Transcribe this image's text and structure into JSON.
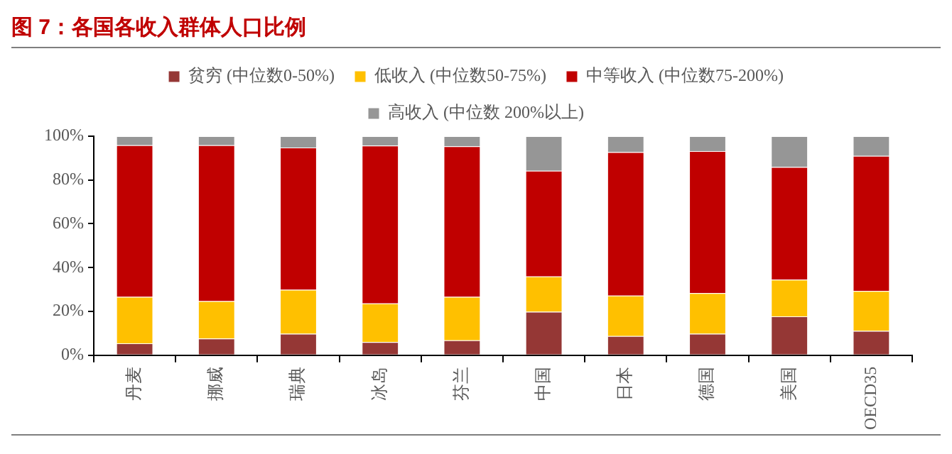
{
  "chart_data": {
    "type": "bar",
    "title": "图 7：各国各收入群体人口比例",
    "stacked": true,
    "categories": [
      "丹麦",
      "挪威",
      "瑞典",
      "冰岛",
      "芬兰",
      "中国",
      "日本",
      "德国",
      "美国",
      "OECD35"
    ],
    "series": [
      {
        "name": "贫穷 (中位数0-50%)",
        "color": "#953735",
        "values": [
          5.4,
          7.6,
          9.8,
          6.0,
          6.8,
          19.8,
          8.7,
          9.8,
          17.7,
          11.1
        ]
      },
      {
        "name": "低收入 (中位数50-75%)",
        "color": "#ffc000",
        "values": [
          21.2,
          17.1,
          20.1,
          17.6,
          19.8,
          16.1,
          18.5,
          18.5,
          16.8,
          18.2
        ]
      },
      {
        "name": "中等收入 (中位数75-200%)",
        "color": "#c00000",
        "values": [
          69.3,
          71.2,
          64.9,
          72.1,
          68.8,
          48.3,
          65.5,
          64.9,
          51.4,
          61.7
        ]
      },
      {
        "name": "高收入 (中位数 200%以上)",
        "color": "#969696",
        "values": [
          4.1,
          4.1,
          5.2,
          4.3,
          4.6,
          15.8,
          7.3,
          6.8,
          14.1,
          9.0
        ]
      }
    ],
    "ylim": [
      0,
      100
    ],
    "yticks": [
      {
        "value": 0,
        "label": "0%"
      },
      {
        "value": 20,
        "label": "20%"
      },
      {
        "value": 40,
        "label": "40%"
      },
      {
        "value": 60,
        "label": "60%"
      },
      {
        "value": 80,
        "label": "80%"
      },
      {
        "value": 100,
        "label": "100%"
      }
    ],
    "grid": false,
    "legend": "top"
  }
}
